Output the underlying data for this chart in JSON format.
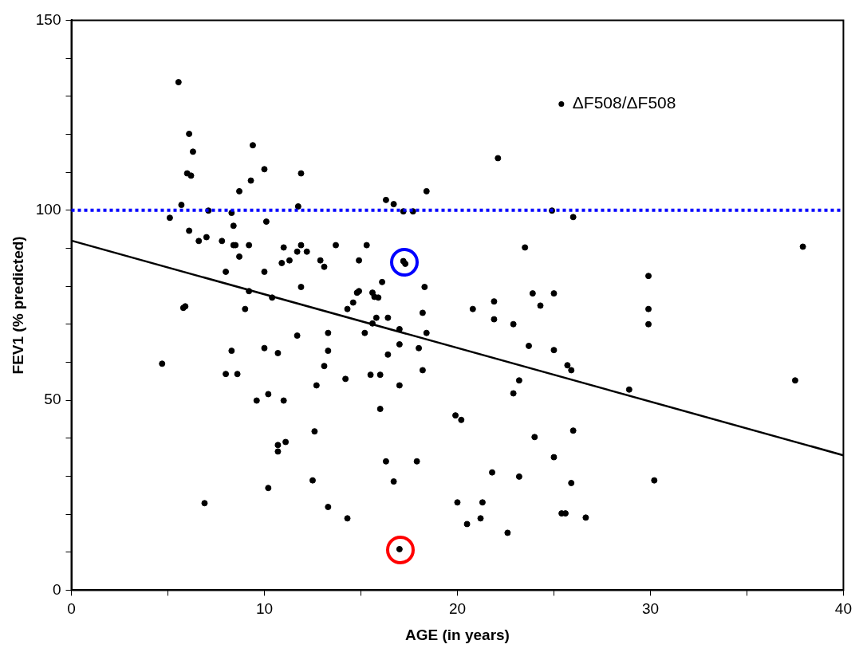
{
  "chart_data": {
    "type": "scatter",
    "xlabel": "AGE (in years)",
    "ylabel": "FEV1 (% predicted)",
    "xlim": [
      0,
      40
    ],
    "xticks": [
      0,
      {
        "value": 5,
        "label": null
      },
      10,
      {
        "value": 15,
        "label": null
      },
      20,
      {
        "value": 25,
        "label": null
      },
      30,
      {
        "value": 35,
        "label": null
      },
      40
    ],
    "ylim": [
      0,
      150
    ],
    "yticks": [
      0,
      {
        "value": 10,
        "label": null
      },
      {
        "value": 20,
        "label": null
      },
      {
        "value": 30,
        "label": null
      },
      {
        "value": 40,
        "label": null
      },
      50,
      {
        "value": 60,
        "label": null
      },
      {
        "value": 70,
        "label": null
      },
      {
        "value": 80,
        "label": null
      },
      {
        "value": 90,
        "label": null
      },
      100,
      {
        "value": 110,
        "label": null
      },
      {
        "value": 120,
        "label": null
      },
      {
        "value": 130,
        "label": null
      },
      {
        "value": 140,
        "label": null
      },
      150
    ],
    "grid": false,
    "legend": "top right",
    "ref_lines": [
      {
        "axis": "y",
        "value": 100,
        "color": "#0000ff",
        "line_style": "dotted"
      }
    ],
    "series": [
      {
        "name": "ΔF508/ΔF508",
        "marker": "circle",
        "color": "#000000",
        "x": [
          5.55,
          6.1,
          6.3,
          6.0,
          6.2,
          9.4,
          10.0,
          11.9,
          9.3,
          8.7,
          5.7,
          5.1,
          7.1,
          8.3,
          11.75,
          10.1,
          6.1,
          8.4,
          6.6,
          7.0,
          7.8,
          8.4,
          8.5,
          9.2,
          8.7,
          11.0,
          10.9,
          11.3,
          11.7,
          11.9,
          12.2,
          12.9,
          13.1,
          13.7,
          15.3,
          14.9,
          8.0,
          10.0,
          11.9,
          16.1,
          18.3,
          14.9,
          14.8,
          15.6,
          15.7,
          15.9,
          14.6,
          14.3,
          20.8,
          21.9,
          23.9,
          25.0,
          24.3,
          18.2,
          15.8,
          16.4,
          15.6,
          17.0,
          21.9,
          22.9,
          13.3,
          15.2,
          18.4,
          17.0,
          18.0,
          23.7,
          25.0,
          13.3,
          16.4,
          13.1,
          15.5,
          16.0,
          18.2,
          25.7,
          25.9,
          14.2,
          12.7,
          17.0,
          23.2,
          22.9,
          16.0,
          19.9,
          20.2,
          12.6,
          26.0,
          24.0,
          16.3,
          17.9,
          25.0,
          21.8,
          23.2,
          12.5,
          16.7,
          25.9,
          13.3,
          20.0,
          21.3,
          25.4,
          25.6,
          14.3,
          21.2,
          20.5,
          22.6,
          26.65,
          30.2,
          28.9,
          37.5,
          37.9,
          29.9,
          29.9,
          29.9,
          26.0,
          24.9,
          23.5,
          22.1,
          18.4,
          16.3,
          16.7,
          17.2,
          17.7,
          17.3,
          4.7,
          8.0,
          8.6,
          8.3,
          5.8,
          5.9,
          9.0,
          10.4,
          9.2,
          10.0,
          10.7,
          9.6,
          10.2,
          11.0,
          10.7,
          10.7,
          11.1,
          11.7,
          6.9,
          10.2,
          17.2,
          17.0
        ],
        "values": [
          133.7,
          120.1,
          115.4,
          109.7,
          109.1,
          117.1,
          110.8,
          109.7,
          107.8,
          105.0,
          101.4,
          98.0,
          99.9,
          99.3,
          101.0,
          97.0,
          94.6,
          95.9,
          91.9,
          92.9,
          91.9,
          90.8,
          90.8,
          90.8,
          87.8,
          90.2,
          86.1,
          86.8,
          89.1,
          90.8,
          89.1,
          86.8,
          85.1,
          90.8,
          90.8,
          86.8,
          83.8,
          83.8,
          79.8,
          81.1,
          79.8,
          78.7,
          78.3,
          78.3,
          77.2,
          77.0,
          75.7,
          74.0,
          74.0,
          76.0,
          78.1,
          78.1,
          74.9,
          73.0,
          71.7,
          71.7,
          70.2,
          68.7,
          71.3,
          70.0,
          67.7,
          67.7,
          67.7,
          64.7,
          63.7,
          64.3,
          63.2,
          63.0,
          62.0,
          59.0,
          56.7,
          56.7,
          57.9,
          59.2,
          57.9,
          55.6,
          53.9,
          53.9,
          55.2,
          51.8,
          47.7,
          46.0,
          44.8,
          41.8,
          42.0,
          40.3,
          33.9,
          33.9,
          35.0,
          31.0,
          29.9,
          28.9,
          28.6,
          28.2,
          21.9,
          23.1,
          23.1,
          20.2,
          20.2,
          18.9,
          18.9,
          17.4,
          15.1,
          19.1,
          28.9,
          52.8,
          55.2,
          90.4,
          82.7,
          74.0,
          70.0,
          98.2,
          99.9,
          90.2,
          113.7,
          105.0,
          102.7,
          101.6,
          99.7,
          99.7,
          85.9,
          59.6,
          56.9,
          56.9,
          63.0,
          74.3,
          74.7,
          74.0,
          77.0,
          78.7,
          63.7,
          62.4,
          49.9,
          51.6,
          49.9,
          38.2,
          36.5,
          39.0,
          67.0,
          22.9,
          26.9,
          86.6,
          10.8
        ]
      },
      {
        "type": "line",
        "marker": "none",
        "color": "#000000",
        "x": [
          0,
          40
        ],
        "values": [
          92,
          35.5
        ]
      }
    ]
  }
}
